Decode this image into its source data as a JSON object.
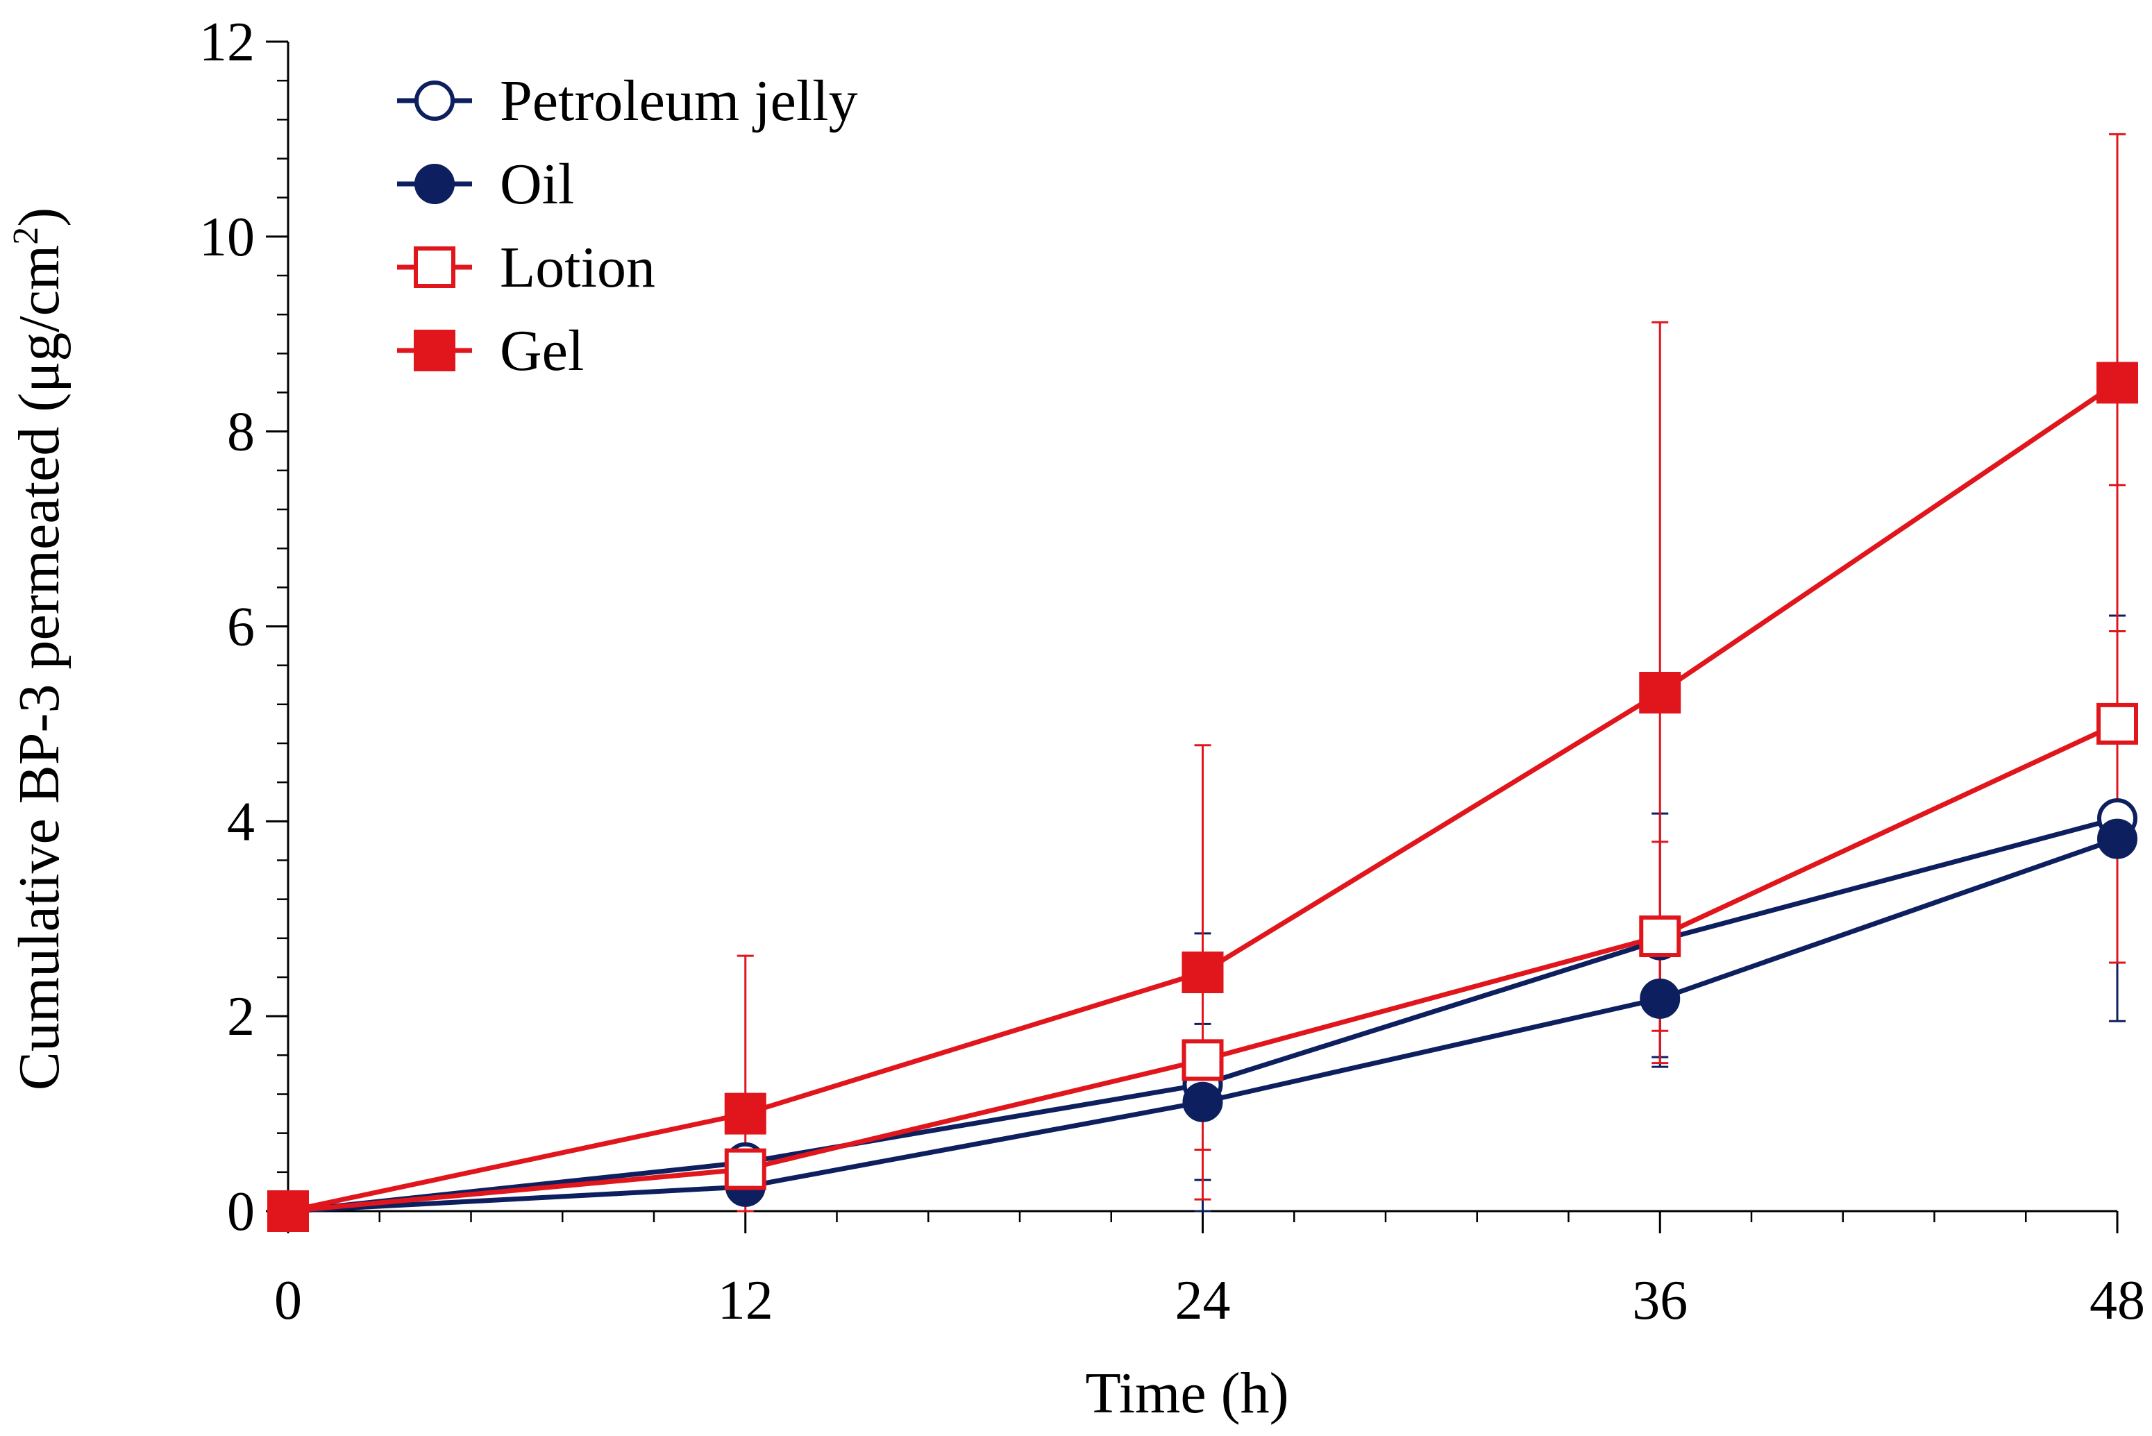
{
  "chart_data": {
    "type": "line",
    "title": "",
    "xlabel": "Time (h)",
    "ylabel_main": "Cumulative BP-3 permeated (μg/cm",
    "ylabel_sup": "2",
    "ylabel_end": ")",
    "xlim": [
      0,
      48
    ],
    "ylim": [
      0,
      12
    ],
    "x_ticks": [
      0,
      12,
      24,
      36,
      48
    ],
    "x_minor_step": 2.4,
    "y_ticks": [
      0,
      2,
      4,
      6,
      8,
      10,
      12
    ],
    "y_minor_step": 0.4,
    "grid": false,
    "legend_position": "top-left",
    "x": [
      0,
      12,
      24,
      36,
      48
    ],
    "series": [
      {
        "name": "Petroleum jelly",
        "marker": "circle",
        "filled": false,
        "color": "#0d1f5e",
        "values": [
          0,
          0.5,
          1.3,
          2.78,
          4.03
        ],
        "error": [
          0,
          0,
          1.55,
          1.3,
          2.08
        ]
      },
      {
        "name": "Oil",
        "marker": "circle",
        "filled": true,
        "color": "#0d1f5e",
        "values": [
          0,
          0.25,
          1.12,
          2.18,
          3.82
        ],
        "error": [
          0,
          0,
          0.8,
          0.6,
          1.27
        ]
      },
      {
        "name": "Lotion",
        "marker": "square",
        "filled": false,
        "color": "#e0161c",
        "values": [
          0,
          0.43,
          1.55,
          2.82,
          5.0
        ],
        "error": [
          0,
          0,
          0.92,
          0.97,
          2.45
        ]
      },
      {
        "name": "Gel",
        "marker": "square",
        "filled": true,
        "color": "#e0161c",
        "values": [
          0,
          1.0,
          2.45,
          5.32,
          8.5
        ],
        "error": [
          0,
          1.62,
          2.33,
          3.8,
          2.55
        ]
      }
    ]
  }
}
